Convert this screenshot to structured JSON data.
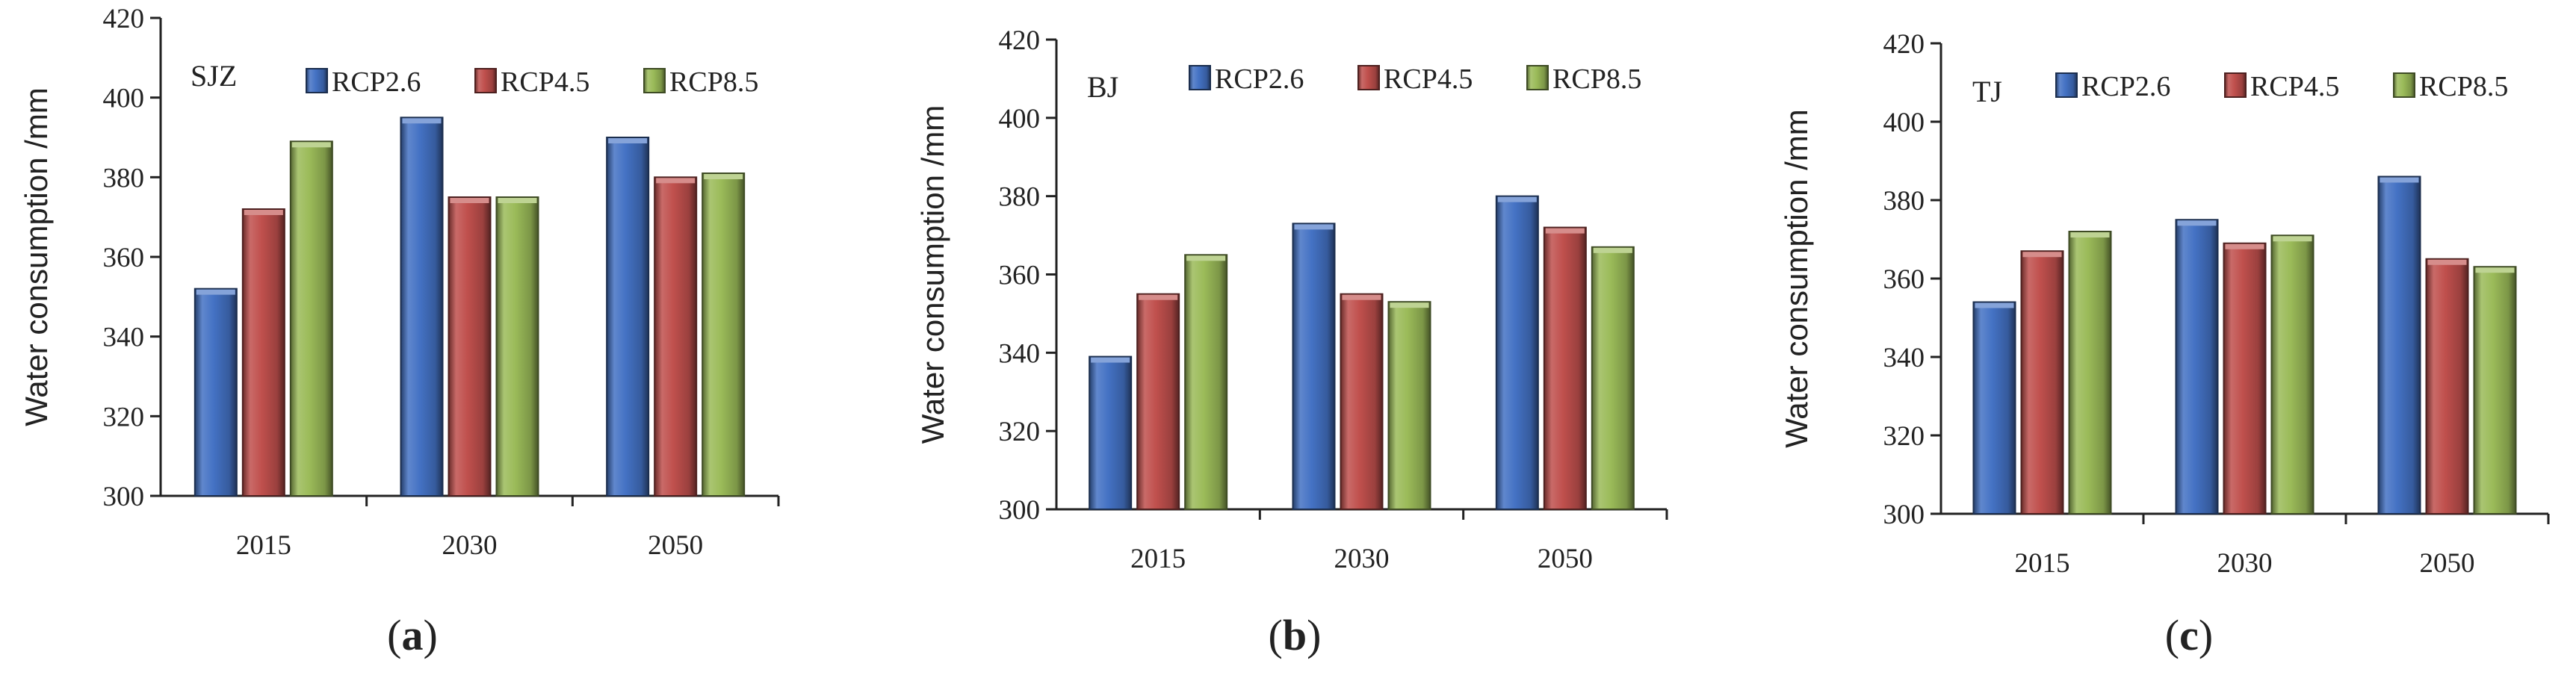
{
  "figure": {
    "colors": {
      "RCP2.6": "#4472C4",
      "RCP4.5": "#C0504D",
      "RCP8.5": "#9BBB59"
    }
  },
  "chart_data": [
    {
      "type": "bar",
      "title": "SJZ",
      "caption_letter": "a",
      "ylabel": "Water consumption /mm",
      "xlabel": "",
      "ylim": [
        300,
        420
      ],
      "yticks": [
        300,
        320,
        340,
        360,
        380,
        400,
        420
      ],
      "categories": [
        "2015",
        "2030",
        "2050"
      ],
      "legend_position": "top-right",
      "grid": false,
      "series": [
        {
          "name": "RCP2.6",
          "values": [
            352,
            395,
            390
          ]
        },
        {
          "name": "RCP4.5",
          "values": [
            372,
            375,
            380
          ]
        },
        {
          "name": "RCP8.5",
          "values": [
            389,
            375,
            381
          ]
        }
      ]
    },
    {
      "type": "bar",
      "title": "BJ",
      "caption_letter": "b",
      "ylabel": "Water consumption /mm",
      "xlabel": "",
      "ylim": [
        300,
        420
      ],
      "yticks": [
        300,
        320,
        340,
        360,
        380,
        400,
        420
      ],
      "categories": [
        "2015",
        "2030",
        "2050"
      ],
      "legend_position": "top-right",
      "grid": false,
      "series": [
        {
          "name": "RCP2.6",
          "values": [
            339,
            373,
            380
          ]
        },
        {
          "name": "RCP4.5",
          "values": [
            355,
            355,
            372
          ]
        },
        {
          "name": "RCP8.5",
          "values": [
            365,
            353,
            367
          ]
        }
      ]
    },
    {
      "type": "bar",
      "title": "TJ",
      "caption_letter": "c",
      "ylabel": "Water consumption /mm",
      "xlabel": "",
      "ylim": [
        300,
        420
      ],
      "yticks": [
        300,
        320,
        340,
        360,
        380,
        400,
        420
      ],
      "categories": [
        "2015",
        "2030",
        "2050"
      ],
      "legend_position": "top-right",
      "grid": false,
      "series": [
        {
          "name": "RCP2.6",
          "values": [
            354,
            375,
            386
          ]
        },
        {
          "name": "RCP4.5",
          "values": [
            367,
            369,
            365
          ]
        },
        {
          "name": "RCP8.5",
          "values": [
            372,
            371,
            363
          ]
        }
      ]
    }
  ]
}
